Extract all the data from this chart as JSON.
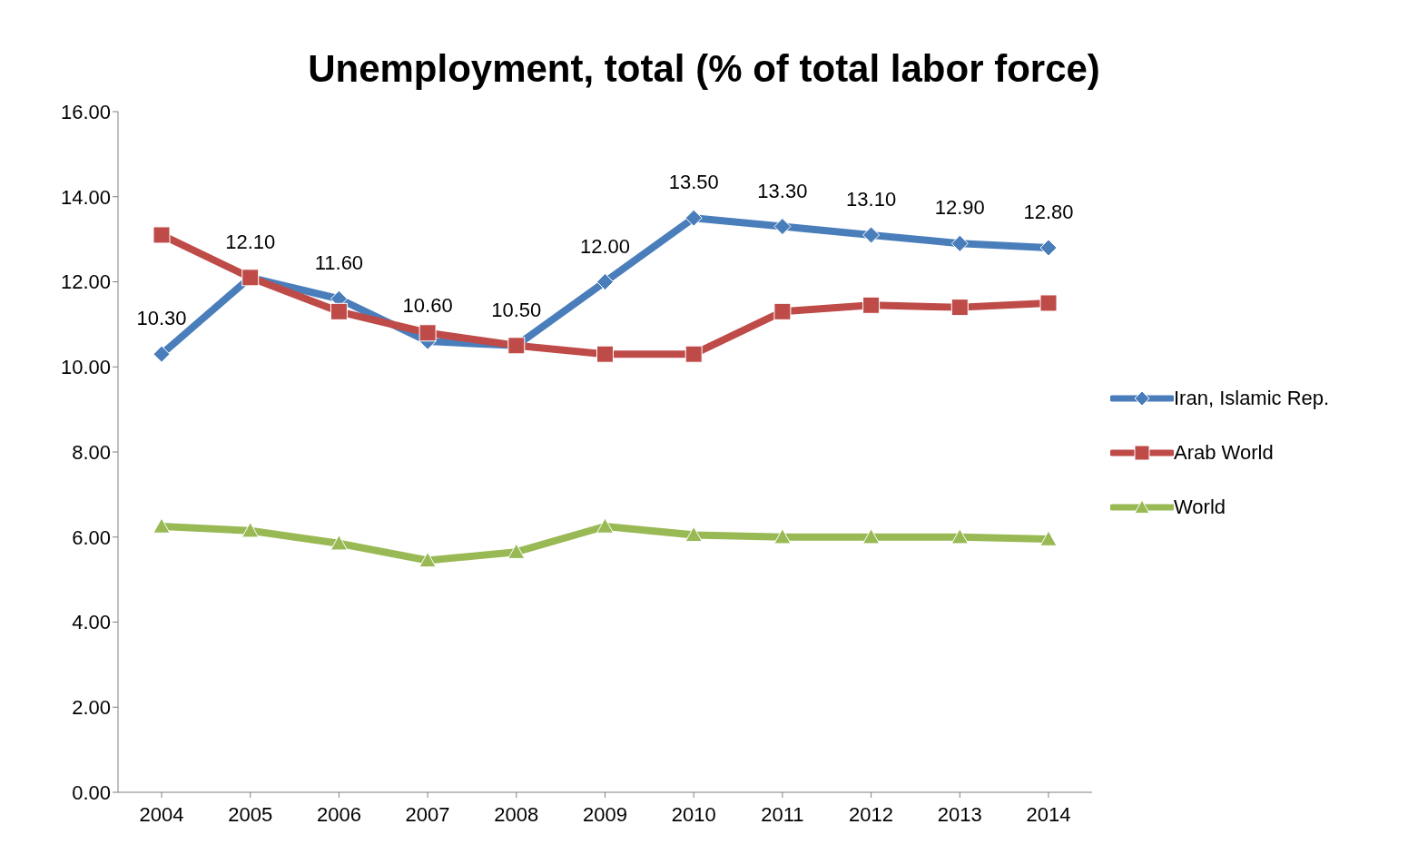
{
  "chart_data": {
    "type": "line",
    "title": "Unemployment, total (% of total labor force)",
    "categories": [
      "2004",
      "2005",
      "2006",
      "2007",
      "2008",
      "2009",
      "2010",
      "2011",
      "2012",
      "2013",
      "2014"
    ],
    "series": [
      {
        "name": "Iran, Islamic Rep.",
        "color": "#4a7ebb",
        "marker": "diamond",
        "values": [
          10.3,
          12.1,
          11.6,
          10.6,
          10.5,
          12.0,
          13.5,
          13.3,
          13.1,
          12.9,
          12.8
        ],
        "value_labels": [
          "10.30",
          "12.10",
          "11.60",
          "10.60",
          "10.50",
          "12.00",
          "13.50",
          "13.30",
          "13.10",
          "12.90",
          "12.80"
        ]
      },
      {
        "name": "Arab World",
        "color": "#be4b48",
        "marker": "square",
        "values": [
          13.1,
          12.1,
          11.3,
          10.8,
          10.5,
          10.3,
          10.3,
          11.3,
          11.45,
          11.4,
          11.5
        ]
      },
      {
        "name": "World",
        "color": "#98b954",
        "marker": "triangle",
        "values": [
          6.25,
          6.15,
          5.85,
          5.45,
          5.65,
          6.25,
          6.05,
          6.0,
          6.0,
          6.0,
          5.95
        ]
      }
    ],
    "ylim": [
      0,
      16
    ],
    "yticks": [
      {
        "value": 0,
        "label": "0.00"
      },
      {
        "value": 2,
        "label": "2.00"
      },
      {
        "value": 4,
        "label": "4.00"
      },
      {
        "value": 6,
        "label": "6.00"
      },
      {
        "value": 8,
        "label": "8.00"
      },
      {
        "value": 10,
        "label": "10.00"
      },
      {
        "value": 12,
        "label": "12.00"
      },
      {
        "value": 14,
        "label": "14.00"
      },
      {
        "value": 16,
        "label": "16.00"
      }
    ],
    "grid": false,
    "legend": "right",
    "line_style": "solid"
  }
}
